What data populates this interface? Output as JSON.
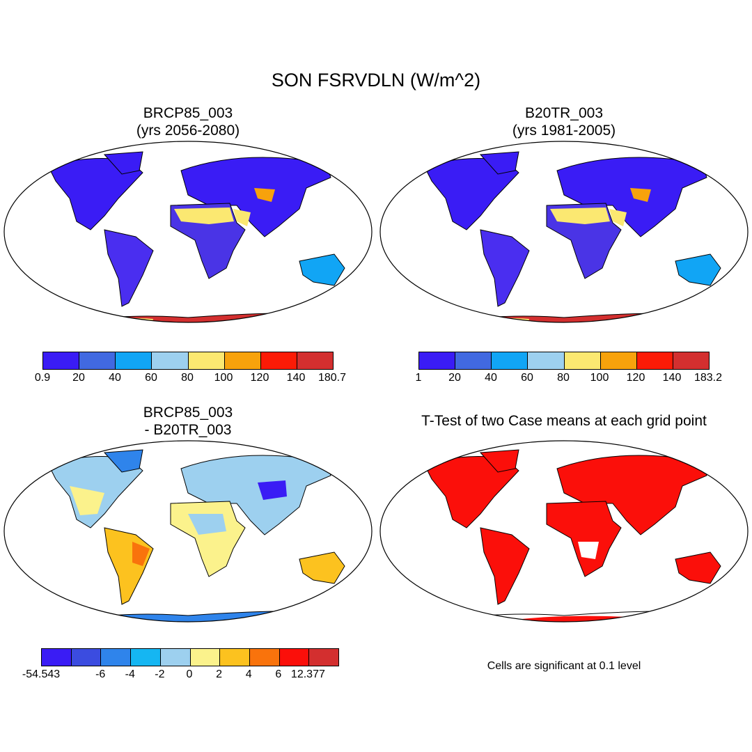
{
  "title": "SON FSRVDLN (W/m^2)",
  "panels": {
    "p1": {
      "line1": "BRCP85_003",
      "line2": "(yrs 2056-2080)"
    },
    "p2": {
      "line1": "B20TR_003",
      "line2": "(yrs 1981-2005)"
    },
    "p3": {
      "line1": "BRCP85_003",
      "line2": "- B20TR_003"
    },
    "p4": {
      "line1": "T-Test of two Case means at each grid point"
    }
  },
  "colorbars": {
    "cb1": {
      "colors": [
        "#3a1cf5",
        "#4169e1",
        "#11a5f5",
        "#9dd0ef",
        "#fbe871",
        "#f7a20c",
        "#fb1b06",
        "#d32f2f"
      ],
      "labels": [
        "0.9",
        "20",
        "40",
        "60",
        "80",
        "100",
        "120",
        "140",
        "180.7"
      ]
    },
    "cb2": {
      "colors": [
        "#3a1cf5",
        "#4169e1",
        "#11a5f5",
        "#9dd0ef",
        "#fbe871",
        "#f7a20c",
        "#fb1b06",
        "#d32f2f"
      ],
      "labels": [
        "1",
        "20",
        "40",
        "60",
        "80",
        "100",
        "120",
        "140",
        "183.2"
      ]
    },
    "cb3": {
      "colors": [
        "#3a1cf5",
        "#3b4ce0",
        "#2f84eb",
        "#15b6f2",
        "#9dd0ef",
        "#fbf28c",
        "#fcc21f",
        "#f9730c",
        "#fb0f0a",
        "#d32f2f"
      ],
      "labels": [
        "-54.543",
        "-6",
        "-4",
        "-2",
        "0",
        "2",
        "4",
        "6",
        "12.377"
      ]
    }
  },
  "note": "Cells are significant at 0.1 level"
}
